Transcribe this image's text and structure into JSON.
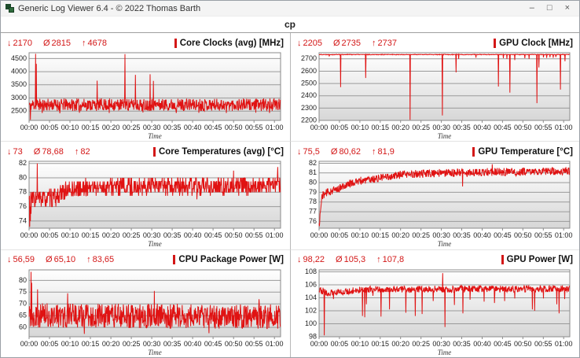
{
  "window": {
    "title": "Generic Log Viewer 6.4 - © 2022 Thomas Barth",
    "controls": {
      "minimize": "–",
      "maximize": "□",
      "close": "×"
    }
  },
  "tab": {
    "label": "cp"
  },
  "glyphs": {
    "min": "↓",
    "avg": "Ø",
    "max": "↑"
  },
  "colors": {
    "accent": "#d31717",
    "series": "#e01212",
    "grid": "#9a9a9a",
    "plot_border": "#8a8a8a",
    "plot_bg_top": "#ffffff",
    "plot_bg_bottom": "#d7d7d7",
    "axis_text": "#222222"
  },
  "chart_data": [
    {
      "type": "line",
      "title": "Core Clocks (avg) [MHz]",
      "stats": {
        "min": "2170",
        "avg": "2815",
        "max": "4678"
      },
      "xlabel": "Time",
      "x_ticks": [
        "00:00",
        "00:05",
        "00:10",
        "00:15",
        "00:20",
        "00:25",
        "00:30",
        "00:35",
        "00:40",
        "00:45",
        "00:50",
        "00:55",
        "01:00"
      ],
      "x_tick_minutes": [
        0,
        5,
        10,
        15,
        20,
        25,
        30,
        35,
        40,
        45,
        50,
        55,
        60
      ],
      "x_range": [
        0,
        61.5
      ],
      "ylim": [
        2150,
        4720
      ],
      "y_ticks": [
        2500,
        3000,
        3500,
        4000,
        4500
      ],
      "series": {
        "seed": 11,
        "step": 0.08,
        "quantize": 10,
        "base_points": [
          [
            0,
            2830
          ],
          [
            61.5,
            2830
          ]
        ],
        "noise": [
          -320,
          150
        ],
        "spikes": [
          [
            0.3,
            2170
          ],
          [
            1.6,
            4678
          ],
          [
            1.75,
            4300
          ],
          [
            3.2,
            2430
          ],
          [
            7.5,
            2420
          ],
          [
            12.3,
            2440
          ],
          [
            16.6,
            3660
          ],
          [
            19.6,
            2430
          ],
          [
            23.4,
            4670
          ],
          [
            26.0,
            3880
          ],
          [
            27.8,
            2450
          ],
          [
            29.6,
            3900
          ],
          [
            30.4,
            3650
          ],
          [
            36.0,
            2430
          ],
          [
            41.5,
            2440
          ],
          [
            48.2,
            2430
          ],
          [
            55.4,
            2440
          ],
          [
            58.8,
            2430
          ]
        ]
      }
    },
    {
      "type": "line",
      "title": "GPU Clock [MHz]",
      "stats": {
        "min": "2205",
        "avg": "2735",
        "max": "2737"
      },
      "xlabel": "Time",
      "x_ticks": [
        "00:00",
        "00:05",
        "00:10",
        "00:15",
        "00:20",
        "00:25",
        "00:30",
        "00:35",
        "00:40",
        "00:45",
        "00:50",
        "00:55",
        "01:00"
      ],
      "x_tick_minutes": [
        0,
        5,
        10,
        15,
        20,
        25,
        30,
        35,
        40,
        45,
        50,
        55,
        60
      ],
      "x_range": [
        0,
        61.5
      ],
      "ylim": [
        2200,
        2750
      ],
      "y_ticks": [
        2200,
        2300,
        2400,
        2500,
        2600,
        2700
      ],
      "series": {
        "seed": 22,
        "step": 0.08,
        "quantize": 1,
        "base_points": [
          [
            0,
            2737
          ],
          [
            61.5,
            2737
          ]
        ],
        "noise": [
          -4,
          0
        ],
        "spikes": [
          [
            2.5,
            2720
          ],
          [
            5.3,
            2470
          ],
          [
            11.4,
            2545
          ],
          [
            22.3,
            2205
          ],
          [
            30.2,
            2240
          ],
          [
            33.6,
            2590
          ],
          [
            34.2,
            2700
          ],
          [
            38.5,
            2710
          ],
          [
            44.0,
            2475
          ],
          [
            45.2,
            2705
          ],
          [
            46.1,
            2700
          ],
          [
            46.8,
            2425
          ],
          [
            48.0,
            2690
          ],
          [
            50.5,
            2705
          ],
          [
            51.5,
            2700
          ],
          [
            53.4,
            2340
          ],
          [
            53.9,
            2630
          ],
          [
            55.0,
            2712
          ],
          [
            55.8,
            2708
          ],
          [
            56.6,
            2713
          ],
          [
            57.4,
            2709
          ],
          [
            58.1,
            2714
          ],
          [
            59.2,
            2450
          ],
          [
            60.3,
            2680
          ]
        ]
      }
    },
    {
      "type": "line",
      "title": "Core Temperatures (avg) [°C]",
      "stats": {
        "min": "73",
        "avg": "78,68",
        "max": "82"
      },
      "xlabel": "Time",
      "x_ticks": [
        "00:00",
        "00:05",
        "00:10",
        "00:15",
        "00:20",
        "00:25",
        "00:30",
        "00:35",
        "00:40",
        "00:45",
        "00:50",
        "00:55",
        "01:00"
      ],
      "x_tick_minutes": [
        0,
        5,
        10,
        15,
        20,
        25,
        30,
        35,
        40,
        45,
        50,
        55,
        60
      ],
      "x_range": [
        0,
        61.5
      ],
      "ylim": [
        73,
        82.3
      ],
      "y_ticks": [
        74,
        76,
        78,
        80,
        82
      ],
      "series": {
        "seed": 33,
        "step": 0.08,
        "quantize": 0.5,
        "base_points": [
          [
            0,
            77.1
          ],
          [
            6.5,
            77.3
          ],
          [
            9,
            78.3
          ],
          [
            15,
            78.8
          ],
          [
            61.5,
            79.0
          ]
        ],
        "noise": [
          -1.3,
          1.1
        ],
        "spikes": [
          [
            0.15,
            73.2
          ],
          [
            0.3,
            74.0
          ],
          [
            0.5,
            75.0
          ],
          [
            2.0,
            82.0
          ],
          [
            41.0,
            77.0
          ],
          [
            50.0,
            81.0
          ],
          [
            60.8,
            81.5
          ]
        ]
      }
    },
    {
      "type": "line",
      "title": "GPU Temperature [°C]",
      "stats": {
        "min": "75,5",
        "avg": "80,62",
        "max": "81,9"
      },
      "xlabel": "Time",
      "x_ticks": [
        "00:00",
        "00:05",
        "00:10",
        "00:15",
        "00:20",
        "00:25",
        "00:30",
        "00:35",
        "00:40",
        "00:45",
        "00:50",
        "00:55",
        "01:00"
      ],
      "x_tick_minutes": [
        0,
        5,
        10,
        15,
        20,
        25,
        30,
        35,
        40,
        45,
        50,
        55,
        60
      ],
      "x_range": [
        0,
        61.5
      ],
      "ylim": [
        75.3,
        82.2
      ],
      "y_ticks": [
        76,
        77,
        78,
        79,
        80,
        81,
        82
      ],
      "series": {
        "seed": 44,
        "step": 0.08,
        "quantize": 0.1,
        "base_points": [
          [
            0,
            75.5
          ],
          [
            0.7,
            78.6
          ],
          [
            2,
            79.0
          ],
          [
            5,
            79.4
          ],
          [
            8,
            80.0
          ],
          [
            12,
            80.3
          ],
          [
            20,
            80.8
          ],
          [
            30,
            81.0
          ],
          [
            45,
            81.1
          ],
          [
            61.5,
            81.2
          ]
        ],
        "noise": [
          -0.4,
          0.4
        ],
        "spikes": [
          [
            0.1,
            75.5
          ],
          [
            35.2,
            79.6
          ],
          [
            42.5,
            81.9
          ]
        ]
      }
    },
    {
      "type": "line",
      "title": "CPU Package Power [W]",
      "stats": {
        "min": "56,59",
        "avg": "65,10",
        "max": "83,65"
      },
      "xlabel": "Time",
      "x_ticks": [
        "00:00",
        "00:05",
        "00:10",
        "00:15",
        "00:20",
        "00:25",
        "00:30",
        "00:35",
        "00:40",
        "00:45",
        "00:50",
        "00:55",
        "01:00"
      ],
      "x_tick_minutes": [
        0,
        5,
        10,
        15,
        20,
        25,
        30,
        35,
        40,
        45,
        50,
        55,
        60
      ],
      "x_range": [
        0,
        61.5
      ],
      "ylim": [
        56,
        84.5
      ],
      "y_ticks": [
        60,
        65,
        70,
        75,
        80
      ],
      "series": {
        "seed": 55,
        "step": 0.08,
        "quantize": 0.25,
        "base_points": [
          [
            0,
            65.3
          ],
          [
            61.5,
            64.8
          ]
        ],
        "noise": [
          -5.5,
          5.0
        ],
        "spikes": [
          [
            0.5,
            83.65
          ],
          [
            0.65,
            79.0
          ],
          [
            2.1,
            76.2
          ],
          [
            9.4,
            74.5
          ],
          [
            13.5,
            57.2
          ],
          [
            30.6,
            75.5
          ],
          [
            44.0,
            57.5
          ],
          [
            56.2,
            72.0
          ]
        ]
      }
    },
    {
      "type": "line",
      "title": "GPU Power [W]",
      "stats": {
        "min": "98,22",
        "avg": "105,3",
        "max": "107,8"
      },
      "xlabel": "Time",
      "x_ticks": [
        "00:00",
        "00:05",
        "00:10",
        "00:15",
        "00:20",
        "00:25",
        "00:30",
        "00:35",
        "00:40",
        "00:45",
        "00:50",
        "00:55",
        "01:00"
      ],
      "x_tick_minutes": [
        0,
        5,
        10,
        15,
        20,
        25,
        30,
        35,
        40,
        45,
        50,
        55,
        60
      ],
      "x_range": [
        0,
        61.5
      ],
      "ylim": [
        98,
        108.3
      ],
      "y_ticks": [
        98,
        100,
        102,
        104,
        106,
        108
      ],
      "series": {
        "seed": 66,
        "step": 0.08,
        "quantize": 0.05,
        "base_points": [
          [
            0,
            105.5
          ],
          [
            2,
            104.8
          ],
          [
            4,
            104.9
          ],
          [
            8,
            105.2
          ],
          [
            12,
            105.4
          ],
          [
            61.5,
            105.5
          ]
        ],
        "noise": [
          -0.6,
          0.4
        ],
        "spikes": [
          [
            1.3,
            98.22
          ],
          [
            3.5,
            103.8
          ],
          [
            10.6,
            101.2
          ],
          [
            11.2,
            101.0
          ],
          [
            11.6,
            103.0
          ],
          [
            13.2,
            104.3
          ],
          [
            15.2,
            101.1
          ],
          [
            17.3,
            102.2
          ],
          [
            21.3,
            101.7
          ],
          [
            23.6,
            101.2
          ],
          [
            25.3,
            101.5
          ],
          [
            28.0,
            103.5
          ],
          [
            30.3,
            107.8
          ],
          [
            30.9,
            99.5
          ],
          [
            33.2,
            102.9
          ],
          [
            35.3,
            101.6
          ],
          [
            37.0,
            103.7
          ],
          [
            40.5,
            103.4
          ],
          [
            43.0,
            103.2
          ],
          [
            45.5,
            103.5
          ],
          [
            48.0,
            103.9
          ],
          [
            52.3,
            102.2
          ],
          [
            52.9,
            102.0
          ],
          [
            55.0,
            103.9
          ],
          [
            58.3,
            103.0
          ],
          [
            58.9,
            101.6
          ],
          [
            60.2,
            103.8
          ]
        ]
      }
    }
  ]
}
